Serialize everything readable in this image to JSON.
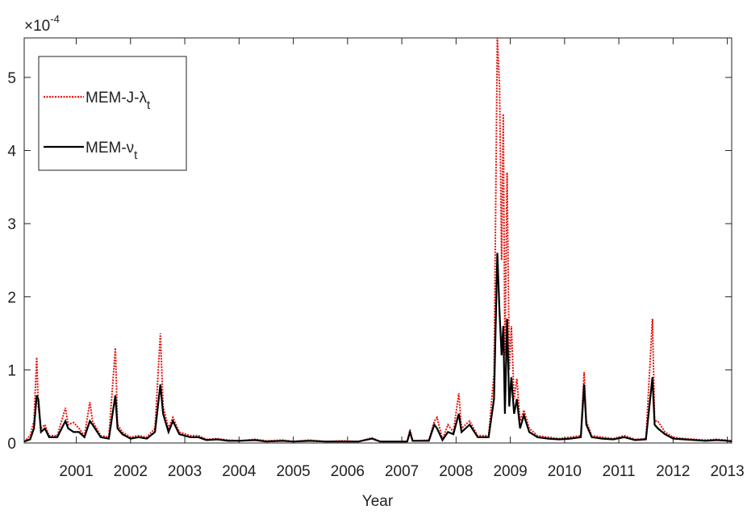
{
  "chart_data": {
    "type": "line",
    "y_scale_label": "×10",
    "y_scale_exponent": "-4",
    "xlabel": "Year",
    "x": [
      2000.04,
      2000.15,
      2000.22,
      2000.27,
      2000.3,
      2000.35,
      2000.42,
      2000.5,
      2000.65,
      2000.8,
      2000.85,
      2000.95,
      2001.05,
      2001.15,
      2001.25,
      2001.3,
      2001.45,
      2001.6,
      2001.72,
      2001.76,
      2001.85,
      2002.0,
      2002.15,
      2002.3,
      2002.45,
      2002.55,
      2002.6,
      2002.7,
      2002.78,
      2002.9,
      2003.1,
      2003.25,
      2003.4,
      2003.6,
      2003.8,
      2004.0,
      2004.3,
      2004.5,
      2004.8,
      2005.0,
      2005.3,
      2005.6,
      2005.9,
      2006.2,
      2006.45,
      2006.6,
      2006.9,
      2007.1,
      2007.15,
      2007.2,
      2007.5,
      2007.6,
      2007.65,
      2007.75,
      2007.85,
      2007.95,
      2008.05,
      2008.1,
      2008.25,
      2008.4,
      2008.6,
      2008.7,
      2008.76,
      2008.8,
      2008.84,
      2008.87,
      2008.9,
      2008.94,
      2008.98,
      2009.02,
      2009.07,
      2009.12,
      2009.18,
      2009.25,
      2009.35,
      2009.5,
      2009.7,
      2009.9,
      2010.1,
      2010.3,
      2010.36,
      2010.4,
      2010.5,
      2010.7,
      2010.9,
      2011.1,
      2011.3,
      2011.5,
      2011.62,
      2011.66,
      2011.72,
      2011.85,
      2012.0,
      2012.2,
      2012.4,
      2012.6,
      2012.8,
      2013.0,
      2013.08
    ],
    "series": [
      {
        "name": "MEM-J-λ",
        "name_subscript": "t",
        "color": "#e8120c",
        "style": "dotted",
        "values": [
          0.02,
          0.1,
          0.3,
          1.17,
          0.5,
          0.2,
          0.25,
          0.1,
          0.1,
          0.48,
          0.25,
          0.28,
          0.2,
          0.1,
          0.56,
          0.3,
          0.1,
          0.08,
          1.3,
          0.25,
          0.15,
          0.08,
          0.1,
          0.08,
          0.2,
          1.5,
          0.5,
          0.2,
          0.35,
          0.15,
          0.1,
          0.1,
          0.05,
          0.06,
          0.04,
          0.03,
          0.05,
          0.03,
          0.04,
          0.02,
          0.04,
          0.02,
          0.03,
          0.02,
          0.07,
          0.02,
          0.02,
          0.02,
          0.18,
          0.03,
          0.04,
          0.3,
          0.35,
          0.05,
          0.25,
          0.15,
          0.68,
          0.2,
          0.3,
          0.1,
          0.1,
          0.95,
          5.54,
          4.9,
          2.5,
          4.5,
          1.2,
          3.7,
          1.0,
          1.6,
          0.6,
          0.88,
          0.3,
          0.45,
          0.2,
          0.1,
          0.08,
          0.06,
          0.08,
          0.1,
          0.97,
          0.3,
          0.1,
          0.08,
          0.06,
          0.1,
          0.05,
          0.06,
          1.7,
          0.3,
          0.3,
          0.15,
          0.08,
          0.06,
          0.05,
          0.04,
          0.05,
          0.04,
          0.03
        ]
      },
      {
        "name": "MEM-ν",
        "name_subscript": "t",
        "color": "#000000",
        "style": "solid",
        "values": [
          0.02,
          0.05,
          0.2,
          0.65,
          0.6,
          0.15,
          0.2,
          0.08,
          0.08,
          0.3,
          0.2,
          0.15,
          0.15,
          0.08,
          0.3,
          0.25,
          0.08,
          0.06,
          0.65,
          0.2,
          0.12,
          0.06,
          0.08,
          0.06,
          0.15,
          0.8,
          0.4,
          0.15,
          0.3,
          0.12,
          0.08,
          0.08,
          0.04,
          0.05,
          0.03,
          0.03,
          0.04,
          0.02,
          0.03,
          0.02,
          0.03,
          0.02,
          0.02,
          0.02,
          0.06,
          0.02,
          0.02,
          0.02,
          0.15,
          0.03,
          0.03,
          0.25,
          0.2,
          0.04,
          0.15,
          0.12,
          0.4,
          0.15,
          0.25,
          0.08,
          0.08,
          0.6,
          2.6,
          1.8,
          1.2,
          1.6,
          0.4,
          1.7,
          0.5,
          0.9,
          0.4,
          0.6,
          0.2,
          0.38,
          0.15,
          0.08,
          0.06,
          0.05,
          0.06,
          0.08,
          0.8,
          0.25,
          0.08,
          0.06,
          0.05,
          0.08,
          0.04,
          0.05,
          0.9,
          0.25,
          0.2,
          0.12,
          0.06,
          0.05,
          0.04,
          0.03,
          0.04,
          0.03,
          0.02
        ]
      }
    ],
    "xlim": [
      2000.04,
      2013.08
    ],
    "xticks": [
      2001,
      2002,
      2003,
      2004,
      2005,
      2006,
      2007,
      2008,
      2009,
      2010,
      2011,
      2012,
      2013
    ],
    "ylim": [
      0,
      5.54
    ],
    "yticks": [
      0,
      1,
      2,
      3,
      4,
      5
    ],
    "legend": "upper left"
  }
}
